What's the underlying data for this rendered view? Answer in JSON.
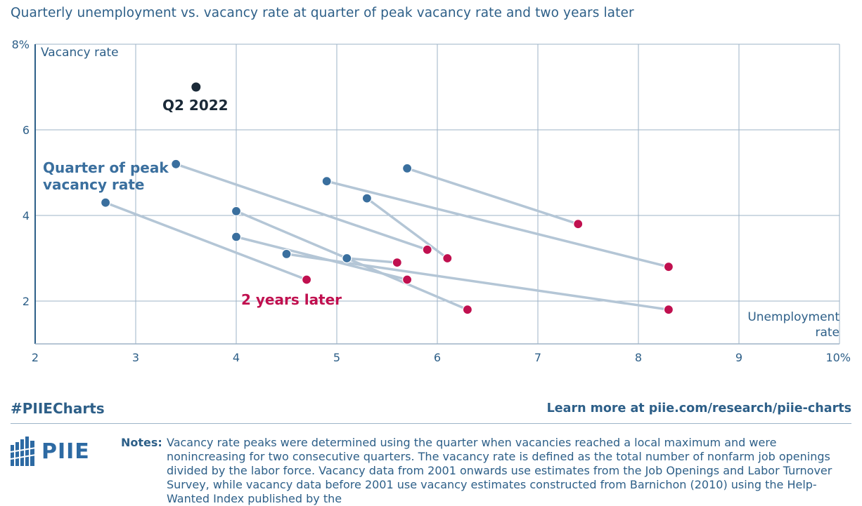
{
  "title": "Quarterly unemployment vs. vacancy rate at quarter of peak vacancy rate and two years later",
  "footer": {
    "hashtag": "#PIIECharts",
    "link": "Learn more at piie.com/research/piie-charts",
    "logo_text": "PIIE",
    "notes_label": "Notes:",
    "notes_text": "Vacancy rate peaks were determined using the quarter when vacancies reached a local maximum and were nonincreasing for two consecutive quarters. The vacancy rate is defined as the total number of nonfarm job openings divided by the labor force. Vacancy data from 2001 onwards use estimates from the Job Openings and Labor Turnover Survey, while vacancy data before 2001 use vacancy estimates constructed from Barnichon (2010) using the Help-Wanted Index published by the"
  },
  "colors": {
    "peak": "#3a6f9e",
    "later": "#c0104f",
    "highlight": "#1b2a38",
    "connector": "#b4c6d6",
    "grid": "#9eb3c7",
    "text": "#2d5f88"
  },
  "chart_data": {
    "type": "scatter",
    "title": "Quarterly unemployment vs. vacancy rate at quarter of peak vacancy rate and two years later",
    "xlabel": "Unemployment rate",
    "ylabel": "Vacancy rate",
    "xlim": [
      2,
      10
    ],
    "ylim": [
      1,
      8
    ],
    "x_ticks": [
      "2",
      "3",
      "4",
      "5",
      "6",
      "7",
      "8",
      "9",
      "10%"
    ],
    "y_ticks": [
      "2",
      "4",
      "6",
      "8%"
    ],
    "grid": true,
    "pairs": [
      {
        "peak": [
          2.7,
          4.3
        ],
        "later": [
          4.7,
          2.5
        ]
      },
      {
        "peak": [
          3.4,
          5.2
        ],
        "later": [
          5.9,
          3.2
        ]
      },
      {
        "peak": [
          4.0,
          4.1
        ],
        "later": [
          6.3,
          1.8
        ]
      },
      {
        "peak": [
          4.0,
          3.5
        ],
        "later": [
          5.7,
          2.5
        ]
      },
      {
        "peak": [
          4.5,
          3.1
        ],
        "later": [
          8.3,
          1.8
        ]
      },
      {
        "peak": [
          4.9,
          4.8
        ],
        "later": [
          8.3,
          2.8
        ]
      },
      {
        "peak": [
          5.1,
          3.0
        ],
        "later": [
          5.6,
          2.9
        ]
      },
      {
        "peak": [
          5.3,
          4.4
        ],
        "later": [
          6.1,
          3.0
        ]
      },
      {
        "peak": [
          5.7,
          5.1
        ],
        "later": [
          7.4,
          3.8
        ]
      }
    ],
    "highlight": {
      "label": "Q2 2022",
      "x": 3.6,
      "y": 7.0
    },
    "annotations": {
      "peak_label": [
        "Quarter of peak",
        "vacancy rate"
      ],
      "later_label": "2 years later",
      "x_axis_label": [
        "Unemployment",
        "rate"
      ]
    }
  }
}
